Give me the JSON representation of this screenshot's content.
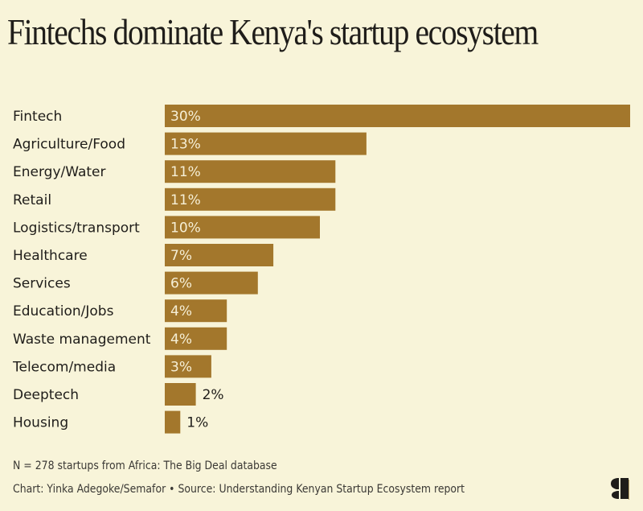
{
  "chart_data": {
    "type": "bar",
    "orientation": "horizontal",
    "title": "Fintechs dominate Kenya's startup ecosystem",
    "xlabel": "",
    "ylabel": "",
    "unit": "%",
    "xlim": [
      0,
      30
    ],
    "grid": false,
    "bar_color": "#a3772c",
    "categories": [
      "Fintech",
      "Agriculture/Food",
      "Energy/Water",
      "Retail",
      "Logistics/transport",
      "Healthcare",
      "Services",
      "Education/Jobs",
      "Waste management",
      "Telecom/media",
      "Deeptech",
      "Housing"
    ],
    "values": [
      30,
      13,
      11,
      11,
      10,
      7,
      6,
      4,
      4,
      3,
      2,
      1
    ],
    "data_labels": [
      "30%",
      "13%",
      "11%",
      "11%",
      "10%",
      "7%",
      "6%",
      "4%",
      "4%",
      "3%",
      "2%",
      "1%"
    ]
  },
  "footer": {
    "note": "N = 278 startups from Africa: The Big Deal database",
    "credit": "Chart: Yinka Adegoke/Semafor • Source: Understanding Kenyan Startup Ecosystem report",
    "logo_icon": "semafor-logo-icon"
  }
}
